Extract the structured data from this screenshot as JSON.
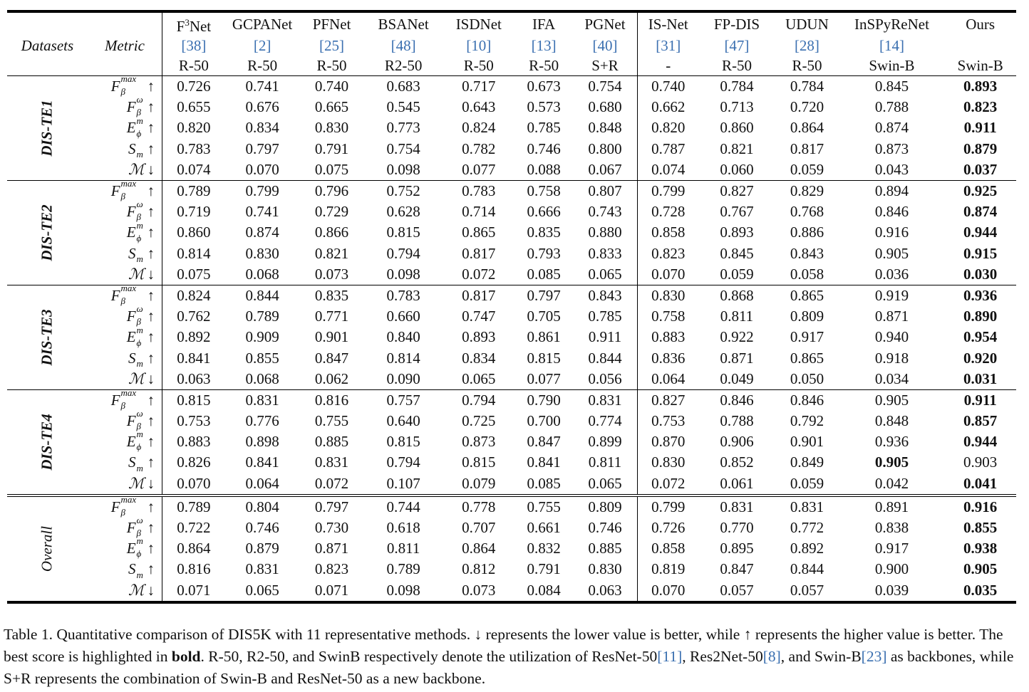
{
  "table": {
    "header": {
      "datasets_label": "Datasets",
      "metric_label": "Metric",
      "methods": [
        {
          "name": "F3Net",
          "ref": "[38]",
          "backbone": "R-50"
        },
        {
          "name": "GCPANet",
          "ref": "[2]",
          "backbone": "R-50"
        },
        {
          "name": "PFNet",
          "ref": "[25]",
          "backbone": "R-50"
        },
        {
          "name": "BSANet",
          "ref": "[48]",
          "backbone": "R2-50"
        },
        {
          "name": "ISDNet",
          "ref": "[10]",
          "backbone": "R-50"
        },
        {
          "name": "IFA",
          "ref": "[13]",
          "backbone": "R-50"
        },
        {
          "name": "PGNet",
          "ref": "[40]",
          "backbone": "S+R"
        },
        {
          "name": "IS-Net",
          "ref": "[31]",
          "backbone": "-"
        },
        {
          "name": "FP-DIS",
          "ref": "[47]",
          "backbone": "R-50"
        },
        {
          "name": "UDUN",
          "ref": "[28]",
          "backbone": "R-50"
        },
        {
          "name": "InSPyReNet",
          "ref": "[14]",
          "backbone": "Swin-B"
        },
        {
          "name": "Ours",
          "ref": "",
          "backbone": "Swin-B"
        }
      ]
    },
    "metrics": [
      {
        "base": "F",
        "sub": "β",
        "sup": "max",
        "arrow": "↑"
      },
      {
        "base": "F",
        "sub": "β",
        "sup": "ω",
        "arrow": "↑"
      },
      {
        "base": "E",
        "sub": "ϕ",
        "sup": "m",
        "arrow": "↑"
      },
      {
        "base": "S",
        "sub": "m",
        "sup": "",
        "arrow": "↑"
      },
      {
        "base": "ℳ",
        "sub": "",
        "sup": "",
        "arrow": "↓"
      }
    ],
    "groups": [
      {
        "name": "DIS-TE1",
        "rows": [
          [
            "0.726",
            "0.741",
            "0.740",
            "0.683",
            "0.717",
            "0.673",
            "0.754",
            "0.740",
            "0.784",
            "0.784",
            "0.845",
            "0.893"
          ],
          [
            "0.655",
            "0.676",
            "0.665",
            "0.545",
            "0.643",
            "0.573",
            "0.680",
            "0.662",
            "0.713",
            "0.720",
            "0.788",
            "0.823"
          ],
          [
            "0.820",
            "0.834",
            "0.830",
            "0.773",
            "0.824",
            "0.785",
            "0.848",
            "0.820",
            "0.860",
            "0.864",
            "0.874",
            "0.911"
          ],
          [
            "0.783",
            "0.797",
            "0.791",
            "0.754",
            "0.782",
            "0.746",
            "0.800",
            "0.787",
            "0.821",
            "0.817",
            "0.873",
            "0.879"
          ],
          [
            "0.074",
            "0.070",
            "0.075",
            "0.098",
            "0.077",
            "0.088",
            "0.067",
            "0.074",
            "0.060",
            "0.059",
            "0.043",
            "0.037"
          ]
        ],
        "bold": [
          [
            11
          ],
          [
            11
          ],
          [
            11
          ],
          [
            11
          ],
          [
            11
          ]
        ]
      },
      {
        "name": "DIS-TE2",
        "rows": [
          [
            "0.789",
            "0.799",
            "0.796",
            "0.752",
            "0.783",
            "0.758",
            "0.807",
            "0.799",
            "0.827",
            "0.829",
            "0.894",
            "0.925"
          ],
          [
            "0.719",
            "0.741",
            "0.729",
            "0.628",
            "0.714",
            "0.666",
            "0.743",
            "0.728",
            "0.767",
            "0.768",
            "0.846",
            "0.874"
          ],
          [
            "0.860",
            "0.874",
            "0.866",
            "0.815",
            "0.865",
            "0.835",
            "0.880",
            "0.858",
            "0.893",
            "0.886",
            "0.916",
            "0.944"
          ],
          [
            "0.814",
            "0.830",
            "0.821",
            "0.794",
            "0.817",
            "0.793",
            "0.833",
            "0.823",
            "0.845",
            "0.843",
            "0.905",
            "0.915"
          ],
          [
            "0.075",
            "0.068",
            "0.073",
            "0.098",
            "0.072",
            "0.085",
            "0.065",
            "0.070",
            "0.059",
            "0.058",
            "0.036",
            "0.030"
          ]
        ],
        "bold": [
          [
            11
          ],
          [
            11
          ],
          [
            11
          ],
          [
            11
          ],
          [
            11
          ]
        ]
      },
      {
        "name": "DIS-TE3",
        "rows": [
          [
            "0.824",
            "0.844",
            "0.835",
            "0.783",
            "0.817",
            "0.797",
            "0.843",
            "0.830",
            "0.868",
            "0.865",
            "0.919",
            "0.936"
          ],
          [
            "0.762",
            "0.789",
            "0.771",
            "0.660",
            "0.747",
            "0.705",
            "0.785",
            "0.758",
            "0.811",
            "0.809",
            "0.871",
            "0.890"
          ],
          [
            "0.892",
            "0.909",
            "0.901",
            "0.840",
            "0.893",
            "0.861",
            "0.911",
            "0.883",
            "0.922",
            "0.917",
            "0.940",
            "0.954"
          ],
          [
            "0.841",
            "0.855",
            "0.847",
            "0.814",
            "0.834",
            "0.815",
            "0.844",
            "0.836",
            "0.871",
            "0.865",
            "0.918",
            "0.920"
          ],
          [
            "0.063",
            "0.068",
            "0.062",
            "0.090",
            "0.065",
            "0.077",
            "0.056",
            "0.064",
            "0.049",
            "0.050",
            "0.034",
            "0.031"
          ]
        ],
        "bold": [
          [
            11
          ],
          [
            11
          ],
          [
            11
          ],
          [
            11
          ],
          [
            11
          ]
        ]
      },
      {
        "name": "DIS-TE4",
        "rows": [
          [
            "0.815",
            "0.831",
            "0.816",
            "0.757",
            "0.794",
            "0.790",
            "0.831",
            "0.827",
            "0.846",
            "0.846",
            "0.905",
            "0.911"
          ],
          [
            "0.753",
            "0.776",
            "0.755",
            "0.640",
            "0.725",
            "0.700",
            "0.774",
            "0.753",
            "0.788",
            "0.792",
            "0.848",
            "0.857"
          ],
          [
            "0.883",
            "0.898",
            "0.885",
            "0.815",
            "0.873",
            "0.847",
            "0.899",
            "0.870",
            "0.906",
            "0.901",
            "0.936",
            "0.944"
          ],
          [
            "0.826",
            "0.841",
            "0.831",
            "0.794",
            "0.815",
            "0.841",
            "0.811",
            "0.830",
            "0.852",
            "0.849",
            "0.905",
            "0.903"
          ],
          [
            "0.070",
            "0.064",
            "0.072",
            "0.107",
            "0.079",
            "0.085",
            "0.065",
            "0.072",
            "0.061",
            "0.059",
            "0.042",
            "0.041"
          ]
        ],
        "bold": [
          [
            11
          ],
          [
            11
          ],
          [
            11
          ],
          [
            10
          ],
          [
            11
          ]
        ]
      },
      {
        "name": "Overall",
        "rows": [
          [
            "0.789",
            "0.804",
            "0.797",
            "0.744",
            "0.778",
            "0.755",
            "0.809",
            "0.799",
            "0.831",
            "0.831",
            "0.891",
            "0.916"
          ],
          [
            "0.722",
            "0.746",
            "0.730",
            "0.618",
            "0.707",
            "0.661",
            "0.746",
            "0.726",
            "0.770",
            "0.772",
            "0.838",
            "0.855"
          ],
          [
            "0.864",
            "0.879",
            "0.871",
            "0.811",
            "0.864",
            "0.832",
            "0.885",
            "0.858",
            "0.895",
            "0.892",
            "0.917",
            "0.938"
          ],
          [
            "0.816",
            "0.831",
            "0.823",
            "0.789",
            "0.812",
            "0.791",
            "0.830",
            "0.819",
            "0.847",
            "0.844",
            "0.900",
            "0.905"
          ],
          [
            "0.071",
            "0.065",
            "0.071",
            "0.098",
            "0.073",
            "0.084",
            "0.063",
            "0.070",
            "0.057",
            "0.057",
            "0.039",
            "0.035"
          ]
        ],
        "bold": [
          [
            11
          ],
          [
            11
          ],
          [
            11
          ],
          [
            11
          ],
          [
            11
          ]
        ]
      }
    ]
  },
  "caption": {
    "label": "Table 1.",
    "text_1": " Quantitative comparison of DIS5K with 11 representative methods. ↓ represents the lower value is better, while ↑ represents the higher value is better. The best score is highlighted in ",
    "bold_word": "bold",
    "text_2": ". R-50, R2-50, and SwinB respectively denote the utilization of ResNet-50",
    "ref_1": "[11]",
    "text_3": ", Res2Net-50",
    "ref_2": "[8]",
    "text_4": ", and Swin-B",
    "ref_3": "[23]",
    "text_5": " as backbones, while S+R represents the combination of Swin-B and ResNet-50 as a new backbone."
  },
  "colors": {
    "ref_link": "#3a6fb0",
    "rule": "#000000"
  }
}
